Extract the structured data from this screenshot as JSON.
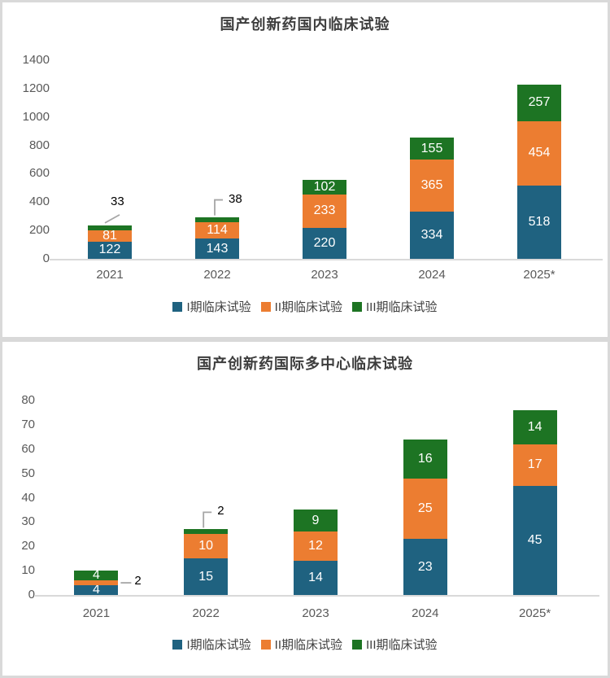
{
  "page": {
    "background": "#ffffff",
    "card_border_color": "#d9d9d9"
  },
  "colors": {
    "phase1_blue": "#1f6280",
    "phase2_orange": "#ec7d31",
    "phase3_green": "#1d7423",
    "axis_text": "#595959",
    "title_text": "#3d3d3d",
    "bar_value_text": "#ffffff",
    "callout_text": "#000000",
    "leader_line": "#a6a6a6",
    "axis_line": "#d9d9d9"
  },
  "chart_data": [
    {
      "type": "bar",
      "stacked": true,
      "title": "国产创新药国内临床试验",
      "categories": [
        "2021",
        "2022",
        "2023",
        "2024",
        "2025*"
      ],
      "series": [
        {
          "name": "I期临床试验",
          "color": "#1f6280",
          "values": [
            122,
            143,
            220,
            334,
            518
          ]
        },
        {
          "name": "II期临床试验",
          "color": "#ec7d31",
          "values": [
            81,
            114,
            233,
            365,
            454
          ]
        },
        {
          "name": "III期临床试验",
          "color": "#1d7423",
          "values": [
            33,
            38,
            102,
            155,
            257
          ]
        }
      ],
      "totals": [
        236,
        295,
        555,
        854,
        1229
      ],
      "xlabel": "",
      "ylabel": "",
      "ylim": [
        0,
        1400
      ],
      "ytick_step": 200,
      "grid": false,
      "legend_position": "bottom",
      "value_labels": "inside-white",
      "callouts": [
        {
          "category": "2021",
          "series": "III期临床试验",
          "value": 33,
          "style": "slant"
        },
        {
          "category": "2022",
          "series": "III期临床试验",
          "value": 38,
          "style": "elbow"
        }
      ]
    },
    {
      "type": "bar",
      "stacked": true,
      "title": "国产创新药国际多中心临床试验",
      "categories": [
        "2021",
        "2022",
        "2023",
        "2024",
        "2025*"
      ],
      "series": [
        {
          "name": "I期临床试验",
          "color": "#1f6280",
          "values": [
            4,
            15,
            14,
            23,
            45
          ]
        },
        {
          "name": "II期临床试验",
          "color": "#ec7d31",
          "values": [
            2,
            10,
            12,
            25,
            17
          ]
        },
        {
          "name": "III期临床试验",
          "color": "#1d7423",
          "values": [
            4,
            2,
            9,
            16,
            14
          ]
        }
      ],
      "totals": [
        10,
        27,
        35,
        64,
        76
      ],
      "xlabel": "",
      "ylabel": "",
      "ylim": [
        0,
        80
      ],
      "ytick_step": 10,
      "grid": false,
      "legend_position": "bottom",
      "value_labels": "inside-white",
      "callouts": [
        {
          "category": "2021",
          "series": "II期临床试验",
          "value": 2,
          "style": "right"
        },
        {
          "category": "2022",
          "series": "III期临床试验",
          "value": 2,
          "style": "elbow"
        }
      ]
    }
  ]
}
